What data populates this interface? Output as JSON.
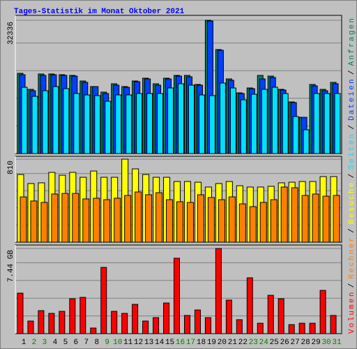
{
  "chart_data": [
    {
      "type": "bar",
      "title": "Tages-Statistik im Monat Oktober 2021",
      "ylim": [
        0,
        32336
      ],
      "yticks": [
        32336
      ],
      "series": [
        {
          "name": "Anfragen",
          "color": "#00805c",
          "values": [
            19470,
            15576,
            19300,
            19300,
            19131,
            18962,
            17607,
            16253,
            14898,
            16930,
            16253,
            17607,
            18284,
            16930,
            18284,
            18962,
            18962,
            16761,
            32336,
            25226,
            18115,
            14729,
            15914,
            18962,
            18792,
            15576,
            12528,
            8804,
            16761,
            15576,
            17269
          ]
        },
        {
          "name": "Dateien",
          "color": "#0040ff",
          "values": [
            19130,
            15240,
            18960,
            19120,
            18960,
            18790,
            17270,
            16250,
            14560,
            16590,
            16080,
            17430,
            18110,
            16590,
            18110,
            18790,
            18620,
            16590,
            32167,
            25060,
            17780,
            14560,
            15740,
            18110,
            18450,
            15400,
            12360,
            8800,
            16420,
            15240,
            16930
          ]
        },
        {
          "name": "Seiten",
          "color": "#00e0ff",
          "values": [
            16084,
            13883,
            15237,
            16253,
            15745,
            14560,
            14221,
            14052,
            12698,
            14221,
            14221,
            14560,
            14560,
            14560,
            15914,
            16930,
            16591,
            14221,
            14052,
            17099,
            15914,
            13036,
            14391,
            15576,
            16084,
            14560,
            8973,
            5756,
            14560,
            14560,
            14560
          ]
        }
      ]
    },
    {
      "type": "bar",
      "ylim": [
        0,
        810
      ],
      "yticks": [
        810
      ],
      "series": [
        {
          "name": "Besuche",
          "color": "#ffff00",
          "values": [
            660,
            572,
            579,
            681,
            653,
            681,
            633,
            694,
            633,
            633,
            810,
            715,
            660,
            633,
            633,
            592,
            592,
            585,
            538,
            572,
            592,
            551,
            538,
            538,
            545,
            579,
            585,
            592,
            592,
            640,
            640
          ]
        },
        {
          "name": "Rechner",
          "color": "#ff8000",
          "values": [
            442,
            402,
            388,
            470,
            476,
            476,
            422,
            429,
            415,
            429,
            456,
            490,
            463,
            483,
            415,
            395,
            388,
            463,
            436,
            415,
            442,
            374,
            347,
            388,
            415,
            538,
            531,
            456,
            470,
            449,
            456
          ]
        }
      ]
    },
    {
      "type": "bar",
      "ylim": [
        0,
        7.44
      ],
      "yticks": [
        {
          "value": 7.44,
          "label": "7.44 GB"
        }
      ],
      "series": [
        {
          "name": "Volumen",
          "color": "#ff0000",
          "values": [
            3.54,
            1.1,
            2.01,
            1.77,
            1.95,
            3.05,
            3.17,
            0.49,
            5.79,
            1.95,
            1.77,
            2.56,
            1.1,
            1.4,
            2.68,
            6.59,
            1.59,
            2.07,
            1.4,
            7.44,
            2.93,
            1.22,
            4.88,
            0.91,
            3.35,
            3.05,
            0.79,
            0.91,
            0.91,
            3.78,
            1.59
          ]
        }
      ],
      "categories": [
        "1",
        "2",
        "3",
        "4",
        "5",
        "6",
        "7",
        "8",
        "9",
        "10",
        "11",
        "12",
        "13",
        "14",
        "15",
        "16",
        "17",
        "18",
        "19",
        "20",
        "21",
        "22",
        "23",
        "24",
        "25",
        "26",
        "27",
        "28",
        "29",
        "30",
        "31"
      ],
      "category_colors": [
        "#000000",
        "#008000",
        "#008000",
        "#000000",
        "#000000",
        "#000000",
        "#000000",
        "#000000",
        "#008000",
        "#008000",
        "#000000",
        "#000000",
        "#000000",
        "#000000",
        "#000000",
        "#008000",
        "#008000",
        "#000000",
        "#000000",
        "#000000",
        "#000000",
        "#000000",
        "#008000",
        "#008000",
        "#000000",
        "#000000",
        "#000000",
        "#000000",
        "#000000",
        "#008000",
        "#008000"
      ]
    }
  ],
  "legend_separator": "/"
}
